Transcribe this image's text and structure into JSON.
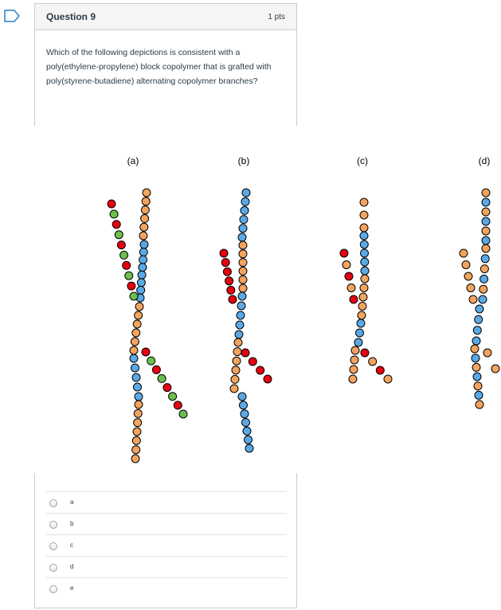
{
  "question": {
    "title": "Question 9",
    "points": "1 pts",
    "text": "Which of the following depictions is consistent with a poly(ethylene-propylene) block copolymer that is grafted with poly(styrene-butadiene) alternating copolymer branches?"
  },
  "figure": {
    "labels": [
      "(a)",
      "(b)",
      "(c)",
      "(d)"
    ]
  },
  "answers": [
    "a",
    "b",
    "c",
    "d",
    "e"
  ],
  "colors": {
    "orange": "#f2a35e",
    "blue": "#5aa9e6",
    "red": "#e60012",
    "green": "#6cbf4f"
  }
}
